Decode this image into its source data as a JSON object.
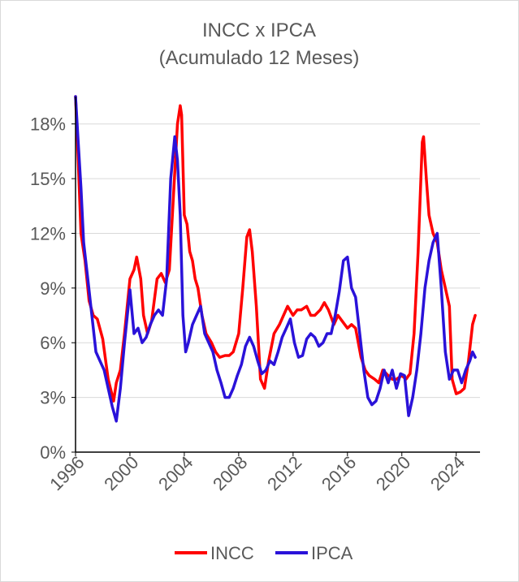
{
  "chart_data": {
    "type": "line",
    "title": "INCC x IPCA",
    "subtitle": "(Acumulado 12 Meses)",
    "xlabel": "",
    "ylabel": "",
    "xlim": [
      1996.0,
      2025.75
    ],
    "ylim": [
      0,
      19.5
    ],
    "y_ticks": [
      0,
      3,
      6,
      9,
      12,
      15,
      18
    ],
    "y_tick_labels": [
      "0%",
      "3%",
      "6%",
      "9%",
      "12%",
      "15%",
      "18%"
    ],
    "x_ticks": [
      1996,
      2000,
      2004,
      2008,
      2012,
      2016,
      2020,
      2024
    ],
    "x_tick_labels": [
      "1996",
      "2000",
      "2004",
      "2008",
      "2012",
      "2016",
      "2020",
      "2024"
    ],
    "grid": "horizontal",
    "legend_position": "bottom",
    "series": [
      {
        "name": "INCC",
        "color": "#ff0000",
        "x": [
          1996.0,
          1996.2,
          1996.4,
          1996.7,
          1997.0,
          1997.3,
          1997.6,
          1998.0,
          1998.4,
          1998.8,
          1999.0,
          1999.3,
          1999.6,
          2000.0,
          2000.3,
          2000.5,
          2000.8,
          2001.0,
          2001.3,
          2001.6,
          2002.0,
          2002.3,
          2002.6,
          2002.9,
          2003.2,
          2003.5,
          2003.7,
          2003.8,
          2004.0,
          2004.2,
          2004.4,
          2004.6,
          2004.8,
          2005.0,
          2005.3,
          2005.6,
          2006.0,
          2006.3,
          2006.6,
          2007.0,
          2007.3,
          2007.6,
          2008.0,
          2008.3,
          2008.6,
          2008.8,
          2009.0,
          2009.3,
          2009.6,
          2009.9,
          2010.2,
          2010.6,
          2011.0,
          2011.3,
          2011.6,
          2012.0,
          2012.3,
          2012.6,
          2013.0,
          2013.3,
          2013.6,
          2014.0,
          2014.3,
          2014.6,
          2015.0,
          2015.3,
          2015.6,
          2016.0,
          2016.3,
          2016.6,
          2017.0,
          2017.3,
          2017.6,
          2018.0,
          2018.3,
          2018.6,
          2019.0,
          2019.3,
          2019.6,
          2020.0,
          2020.3,
          2020.6,
          2020.9,
          2021.2,
          2021.4,
          2021.5,
          2021.6,
          2021.8,
          2022.0,
          2022.3,
          2022.6,
          2022.9,
          2023.2,
          2023.5,
          2023.7,
          2024.0,
          2024.3,
          2024.6,
          2024.9,
          2025.2,
          2025.4
        ],
        "values": [
          19.5,
          16.0,
          12.0,
          10.5,
          8.3,
          7.5,
          7.3,
          6.2,
          4.0,
          2.8,
          3.8,
          4.5,
          6.5,
          9.5,
          10.0,
          10.7,
          9.5,
          7.5,
          6.5,
          7.2,
          9.5,
          9.8,
          9.3,
          10.0,
          14.0,
          18.0,
          19.0,
          18.5,
          13.0,
          12.5,
          11.0,
          10.5,
          9.5,
          9.0,
          7.5,
          6.5,
          6.0,
          5.5,
          5.2,
          5.3,
          5.3,
          5.5,
          6.5,
          9.0,
          11.8,
          12.2,
          11.0,
          8.0,
          4.0,
          3.5,
          5.0,
          6.5,
          7.0,
          7.5,
          8.0,
          7.5,
          7.8,
          7.8,
          8.0,
          7.5,
          7.5,
          7.8,
          8.2,
          7.8,
          7.0,
          7.5,
          7.2,
          6.8,
          7.0,
          6.8,
          5.2,
          4.5,
          4.2,
          4.0,
          3.8,
          4.5,
          4.2,
          4.0,
          4.0,
          4.2,
          4.0,
          4.3,
          6.5,
          11.0,
          15.0,
          17.0,
          17.3,
          15.0,
          13.0,
          12.0,
          11.5,
          10.0,
          9.0,
          8.0,
          4.0,
          3.2,
          3.3,
          3.5,
          5.0,
          7.0,
          7.5
        ]
      },
      {
        "name": "IPCA",
        "color": "#2a12d9",
        "x": [
          1996.0,
          1996.2,
          1996.4,
          1996.6,
          1996.9,
          1997.2,
          1997.5,
          1997.8,
          1998.1,
          1998.4,
          1998.7,
          1999.0,
          1999.3,
          1999.6,
          2000.0,
          2000.3,
          2000.6,
          2000.9,
          2001.2,
          2001.5,
          2001.8,
          2002.1,
          2002.4,
          2002.7,
          2003.0,
          2003.3,
          2003.5,
          2003.7,
          2003.9,
          2004.1,
          2004.3,
          2004.6,
          2004.9,
          2005.2,
          2005.5,
          2005.8,
          2006.1,
          2006.4,
          2006.7,
          2007.0,
          2007.3,
          2007.6,
          2007.9,
          2008.2,
          2008.5,
          2008.8,
          2009.1,
          2009.4,
          2009.7,
          2010.0,
          2010.3,
          2010.6,
          2010.9,
          2011.2,
          2011.5,
          2011.8,
          2012.1,
          2012.4,
          2012.7,
          2013.0,
          2013.3,
          2013.6,
          2013.9,
          2014.2,
          2014.5,
          2014.8,
          2015.1,
          2015.4,
          2015.7,
          2016.0,
          2016.3,
          2016.6,
          2016.9,
          2017.2,
          2017.5,
          2017.8,
          2018.1,
          2018.4,
          2018.7,
          2019.0,
          2019.3,
          2019.6,
          2019.9,
          2020.2,
          2020.5,
          2020.8,
          2021.1,
          2021.4,
          2021.7,
          2022.0,
          2022.3,
          2022.6,
          2022.9,
          2023.2,
          2023.5,
          2023.8,
          2024.1,
          2024.4,
          2024.7,
          2025.0,
          2025.2,
          2025.4
        ],
        "values": [
          19.5,
          17.0,
          14.5,
          11.5,
          9.5,
          7.5,
          5.5,
          5.0,
          4.5,
          3.5,
          2.5,
          1.7,
          3.5,
          6.0,
          8.9,
          6.5,
          6.8,
          6.0,
          6.3,
          7.0,
          7.5,
          7.8,
          7.5,
          9.5,
          15.0,
          17.3,
          16.0,
          13.0,
          7.5,
          5.5,
          6.0,
          7.0,
          7.5,
          8.0,
          6.5,
          6.0,
          5.5,
          4.5,
          3.8,
          3.0,
          3.0,
          3.5,
          4.2,
          4.8,
          5.8,
          6.3,
          5.8,
          5.0,
          4.3,
          4.5,
          5.0,
          4.8,
          5.5,
          6.3,
          6.8,
          7.3,
          6.0,
          5.2,
          5.3,
          6.2,
          6.5,
          6.3,
          5.8,
          6.0,
          6.5,
          6.5,
          7.5,
          8.8,
          10.5,
          10.7,
          9.0,
          8.5,
          6.5,
          4.5,
          3.0,
          2.6,
          2.8,
          3.5,
          4.5,
          3.8,
          4.5,
          3.5,
          4.3,
          4.2,
          2.0,
          3.0,
          4.5,
          6.5,
          9.0,
          10.5,
          11.5,
          12.0,
          9.0,
          5.5,
          4.0,
          4.5,
          4.5,
          3.8,
          4.5,
          5.0,
          5.5,
          5.2
        ]
      }
    ]
  }
}
